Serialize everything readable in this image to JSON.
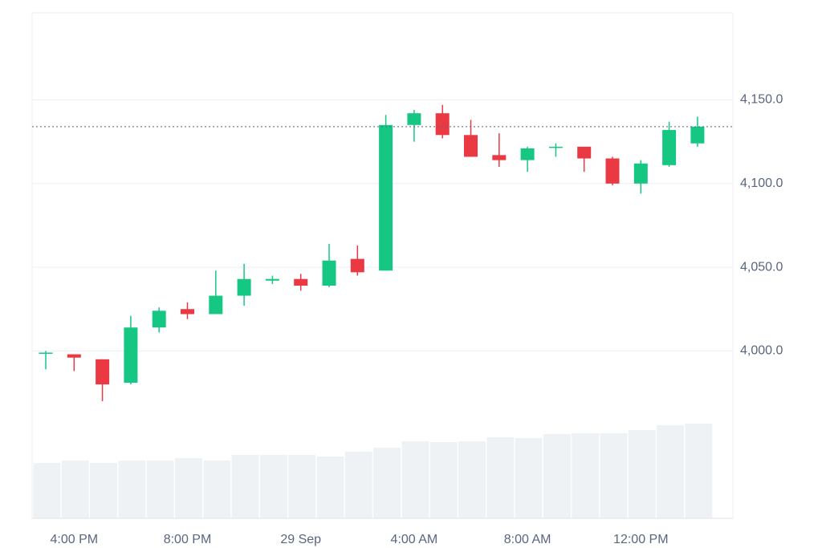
{
  "chart_data": {
    "type": "candlestick",
    "categories": [
      null,
      "4:00 PM",
      null,
      null,
      null,
      "8:00 PM",
      null,
      null,
      null,
      "29 Sep",
      null,
      null,
      null,
      "4:00 AM",
      null,
      null,
      null,
      "8:00 AM",
      null,
      null,
      null,
      "12:00 PM",
      null,
      null
    ],
    "open": [
      3999,
      3998,
      3995,
      3981,
      4014,
      4025,
      4022,
      4033,
      4042,
      4043,
      4039,
      4055,
      4048,
      4135,
      4142,
      4129,
      4117,
      4114,
      4122,
      4122,
      4115,
      4100,
      4111,
      4124
    ],
    "high": [
      4000,
      3998,
      3995,
      4021,
      4026,
      4029,
      4048,
      4052,
      4045,
      4046,
      4064,
      4063,
      4141,
      4144,
      4147,
      4138,
      4130,
      4122,
      4124,
      4122,
      4116,
      4114,
      4137,
      4140
    ],
    "low": [
      3989,
      3988,
      3970,
      3980,
      4011,
      4019,
      4022,
      4027,
      4040,
      4036,
      4038,
      4045,
      4048,
      4125,
      4127,
      4116,
      4110,
      4107,
      4116,
      4107,
      4099,
      4094,
      4110,
      4122
    ],
    "close": [
      3999,
      3996,
      3980,
      4014,
      4024,
      4022,
      4033,
      4043,
      4043,
      4039,
      4054,
      4047,
      4135,
      4142,
      4129,
      4116,
      4114,
      4121,
      4122,
      4115,
      4100,
      4112,
      4132,
      4134
    ],
    "volume": [
      69,
      72,
      69,
      72,
      72,
      75,
      72,
      79,
      79,
      79,
      77,
      83,
      88,
      96,
      95,
      96,
      101,
      100,
      105,
      106,
      106,
      110,
      116,
      118
    ],
    "up_color": "#16c784",
    "down_color": "#ea3943",
    "volume_color": "#eff2f5",
    "ylim": [
      3900,
      4202
    ],
    "yticks": [
      {
        "value": 4000,
        "label": "4,000.0"
      },
      {
        "value": 4050,
        "label": "4,050.0"
      },
      {
        "value": 4100,
        "label": "4,100.0"
      },
      {
        "value": 4150,
        "label": "4,150.0"
      }
    ],
    "grid": true,
    "last_price_line": true
  }
}
